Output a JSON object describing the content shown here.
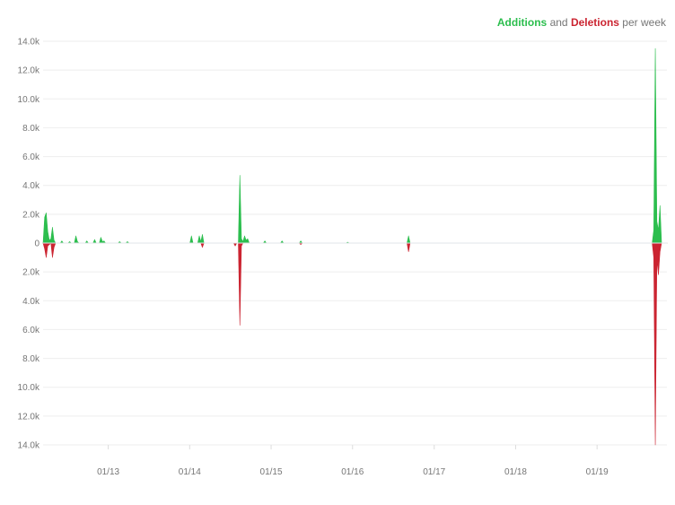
{
  "legend": {
    "additions": "Additions",
    "and": "and",
    "deletions": "Deletions",
    "suffix": "per week"
  },
  "chart_data": {
    "type": "area",
    "title": "Additions and Deletions per week",
    "ylim": [
      -14000,
      14000
    ],
    "yticks": [
      {
        "value": 14000,
        "label": "14.0k"
      },
      {
        "value": 12000,
        "label": "12.0k"
      },
      {
        "value": 10000,
        "label": "10.0k"
      },
      {
        "value": 8000,
        "label": "8.0k"
      },
      {
        "value": 6000,
        "label": "6.0k"
      },
      {
        "value": 4000,
        "label": "4.0k"
      },
      {
        "value": 2000,
        "label": "2.0k"
      },
      {
        "value": 0,
        "label": "0"
      },
      {
        "value": -2000,
        "label": "2.0k"
      },
      {
        "value": -4000,
        "label": "4.0k"
      },
      {
        "value": -6000,
        "label": "6.0k"
      },
      {
        "value": -8000,
        "label": "8.0k"
      },
      {
        "value": -10000,
        "label": "10.0k"
      },
      {
        "value": -12000,
        "label": "12.0k"
      },
      {
        "value": -14000,
        "label": "14.0k"
      }
    ],
    "xlim": [
      "2012-03-15",
      "2019-11-10"
    ],
    "xticks": [
      {
        "date": "2013-01-01",
        "label": "01/13"
      },
      {
        "date": "2014-01-01",
        "label": "01/14"
      },
      {
        "date": "2015-01-01",
        "label": "01/15"
      },
      {
        "date": "2016-01-01",
        "label": "01/16"
      },
      {
        "date": "2017-01-01",
        "label": "01/17"
      },
      {
        "date": "2018-01-01",
        "label": "01/18"
      },
      {
        "date": "2019-01-01",
        "label": "01/19"
      }
    ],
    "series": [
      {
        "name": "Additions",
        "color": "#2cbe4e",
        "points": [
          [
            "2012-03-15",
            0
          ],
          [
            "2012-03-22",
            1800
          ],
          [
            "2012-03-29",
            2100
          ],
          [
            "2012-04-05",
            800
          ],
          [
            "2012-04-12",
            200
          ],
          [
            "2012-04-19",
            300
          ],
          [
            "2012-04-26",
            1100
          ],
          [
            "2012-05-03",
            200
          ],
          [
            "2012-05-10",
            0
          ],
          [
            "2012-05-31",
            0
          ],
          [
            "2012-06-07",
            150
          ],
          [
            "2012-06-14",
            0
          ],
          [
            "2012-07-05",
            0
          ],
          [
            "2012-07-12",
            100
          ],
          [
            "2012-07-19",
            0
          ],
          [
            "2012-08-02",
            0
          ],
          [
            "2012-08-09",
            500
          ],
          [
            "2012-08-16",
            100
          ],
          [
            "2012-08-23",
            0
          ],
          [
            "2012-09-20",
            0
          ],
          [
            "2012-09-27",
            150
          ],
          [
            "2012-10-04",
            0
          ],
          [
            "2012-10-25",
            0
          ],
          [
            "2012-11-01",
            250
          ],
          [
            "2012-11-08",
            0
          ],
          [
            "2012-11-22",
            0
          ],
          [
            "2012-11-29",
            400
          ],
          [
            "2012-12-06",
            100
          ],
          [
            "2012-12-13",
            150
          ],
          [
            "2012-12-20",
            0
          ],
          [
            "2013-02-14",
            0
          ],
          [
            "2013-02-21",
            100
          ],
          [
            "2013-02-28",
            0
          ],
          [
            "2013-03-21",
            0
          ],
          [
            "2013-03-28",
            100
          ],
          [
            "2013-04-04",
            0
          ],
          [
            "2014-01-02",
            0
          ],
          [
            "2014-01-09",
            500
          ],
          [
            "2014-01-16",
            0
          ],
          [
            "2014-02-06",
            0
          ],
          [
            "2014-02-13",
            500
          ],
          [
            "2014-02-20",
            100
          ],
          [
            "2014-02-27",
            600
          ],
          [
            "2014-03-06",
            0
          ],
          [
            "2014-08-07",
            0
          ],
          [
            "2014-08-14",
            4700
          ],
          [
            "2014-08-21",
            300
          ],
          [
            "2014-08-28",
            100
          ],
          [
            "2014-09-04",
            500
          ],
          [
            "2014-09-11",
            200
          ],
          [
            "2014-09-18",
            300
          ],
          [
            "2014-09-25",
            0
          ],
          [
            "2014-11-27",
            0
          ],
          [
            "2014-12-04",
            150
          ],
          [
            "2014-12-11",
            0
          ],
          [
            "2015-02-12",
            0
          ],
          [
            "2015-02-19",
            150
          ],
          [
            "2015-02-26",
            0
          ],
          [
            "2015-05-07",
            0
          ],
          [
            "2015-05-14",
            150
          ],
          [
            "2015-05-21",
            0
          ],
          [
            "2015-12-03",
            0
          ],
          [
            "2015-12-10",
            60
          ],
          [
            "2015-12-17",
            0
          ],
          [
            "2016-09-01",
            0
          ],
          [
            "2016-09-08",
            500
          ],
          [
            "2016-09-15",
            0
          ],
          [
            "2019-09-05",
            0
          ],
          [
            "2019-09-12",
            900
          ],
          [
            "2019-09-19",
            13500
          ],
          [
            "2019-09-26",
            1500
          ],
          [
            "2019-10-03",
            900
          ],
          [
            "2019-10-10",
            2600
          ],
          [
            "2019-10-17",
            0
          ],
          [
            "2019-11-10",
            0
          ]
        ]
      },
      {
        "name": "Deletions",
        "color": "#cb2431",
        "points": [
          [
            "2012-03-15",
            0
          ],
          [
            "2012-03-22",
            -400
          ],
          [
            "2012-03-29",
            -1000
          ],
          [
            "2012-04-05",
            -200
          ],
          [
            "2012-04-12",
            -100
          ],
          [
            "2012-04-19",
            0
          ],
          [
            "2012-04-26",
            -1000
          ],
          [
            "2012-05-03",
            -300
          ],
          [
            "2012-05-10",
            0
          ],
          [
            "2014-02-20",
            0
          ],
          [
            "2014-02-27",
            -300
          ],
          [
            "2014-03-06",
            0
          ],
          [
            "2014-07-17",
            0
          ],
          [
            "2014-07-24",
            -200
          ],
          [
            "2014-07-31",
            0
          ],
          [
            "2014-08-07",
            0
          ],
          [
            "2014-08-14",
            -5700
          ],
          [
            "2014-08-21",
            -200
          ],
          [
            "2014-08-28",
            0
          ],
          [
            "2015-05-07",
            0
          ],
          [
            "2015-05-14",
            -100
          ],
          [
            "2015-05-21",
            0
          ],
          [
            "2016-09-01",
            0
          ],
          [
            "2016-09-08",
            -600
          ],
          [
            "2016-09-15",
            0
          ],
          [
            "2019-09-05",
            0
          ],
          [
            "2019-09-12",
            -1000
          ],
          [
            "2019-09-19",
            -14000
          ],
          [
            "2019-09-26",
            -1200
          ],
          [
            "2019-10-03",
            -2200
          ],
          [
            "2019-10-10",
            -600
          ],
          [
            "2019-10-17",
            0
          ],
          [
            "2019-11-10",
            0
          ]
        ]
      }
    ]
  }
}
